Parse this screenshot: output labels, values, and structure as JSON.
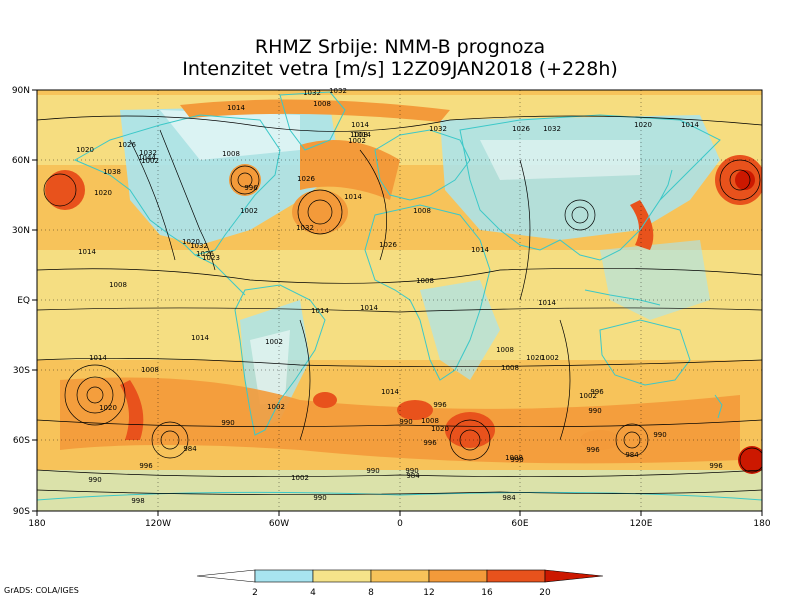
{
  "title": {
    "line1": "RHMZ Srbije: NMM-B prognoza",
    "line2": "Intenzitet vetra [m/s] 12Z09JAN2018 (+228h)"
  },
  "x_ticks": [
    "180",
    "120W",
    "60W",
    "0",
    "60E",
    "120E",
    "180"
  ],
  "y_ticks": [
    "90N",
    "60N",
    "30N",
    "EQ",
    "30S",
    "60S",
    "90S"
  ],
  "colorbar": {
    "labels": [
      "2",
      "4",
      "8",
      "12",
      "16",
      "20"
    ],
    "colors": [
      "#ffffff",
      "#a8e4f0",
      "#f5e38a",
      "#f7c35a",
      "#f39a3a",
      "#e8521c",
      "#cc1800",
      "#b01000"
    ]
  },
  "isobar_labels": [
    "1014",
    "1032",
    "1008",
    "1032",
    "1032",
    "1020",
    "1014",
    "1026",
    "1020",
    "1032",
    "1014",
    "1008",
    "1026",
    "1032",
    "1014",
    "1002",
    "1008",
    "1002",
    "1038",
    "1020",
    "1044",
    "1026",
    "996",
    "1014",
    "1002",
    "1020",
    "1026",
    "1032",
    "1014",
    "1008",
    "1032",
    "1026",
    "1023",
    "1014",
    "1008",
    "1014",
    "1014",
    "1008",
    "1014",
    "1020",
    "1008",
    "1002",
    "1008",
    "1014",
    "1014",
    "1008",
    "1020",
    "1002",
    "1002",
    "1014",
    "1008",
    "996",
    "990",
    "996",
    "984",
    "990",
    "1020",
    "1008",
    "990",
    "996",
    "1002",
    "990",
    "996",
    "990",
    "984",
    "990",
    "984",
    "996",
    "990",
    "996",
    "984",
    "990",
    "1002",
    "990",
    "998"
  ],
  "credit": "GrADS: COLA/IGES"
}
